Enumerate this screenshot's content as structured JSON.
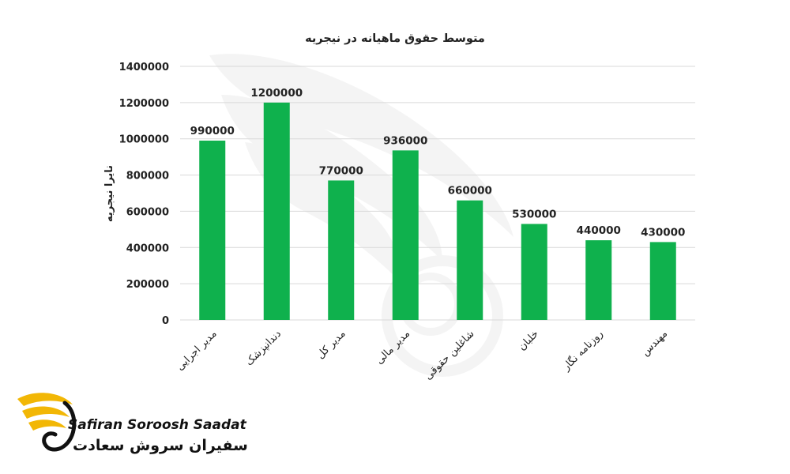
{
  "chart_data": {
    "type": "bar",
    "title": "متوسط حقوق ماهیانه در نیجریه",
    "ylabel": "نایرا نیجریه",
    "xlabel": "",
    "ylim": [
      0,
      1400000
    ],
    "yticks": [
      "0",
      "200000",
      "400000",
      "600000",
      "800000",
      "1000000",
      "1200000",
      "1400000"
    ],
    "grid": true,
    "categories": [
      "مدیر اجرایی",
      "دندانپزشک",
      "مدیر کل",
      "مدیر مالی",
      "شاغلین حقوقی",
      "خلبان",
      "روزنامه نگار",
      "مهندس"
    ],
    "values": [
      990000,
      1200000,
      770000,
      936000,
      660000,
      530000,
      440000,
      430000
    ],
    "colors": {
      "bar": "#0fb14d",
      "grid": "#d9d9d9"
    }
  },
  "brand": {
    "name_en": "Safiran Soroosh Saadat",
    "name_fa": "سفیران سروش سعادت",
    "colors": {
      "wing": "#f2b705",
      "text": "#111111"
    }
  }
}
